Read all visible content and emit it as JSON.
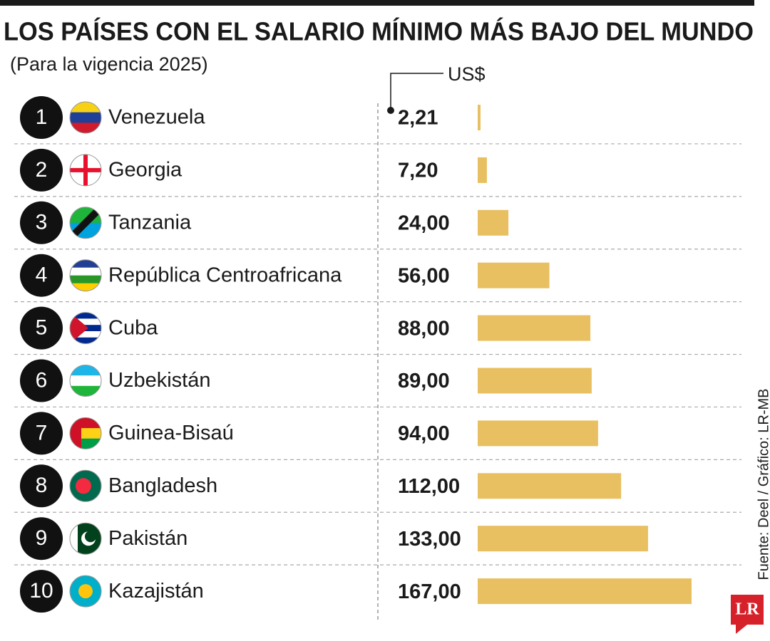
{
  "title": "LOS PAÍSES CON EL SALARIO MÍNIMO MÁS BAJO DEL MUNDO",
  "subtitle": "(Para la vigencia 2025)",
  "source": "Fuente: Deel / Gráfico: LR-MB",
  "logo": "LR",
  "chart_data": {
    "type": "bar",
    "orientation": "horizontal",
    "unit_label": "US$",
    "ranks": [
      1,
      2,
      3,
      4,
      5,
      6,
      7,
      8,
      9,
      10
    ],
    "categories": [
      "Venezuela",
      "Georgia",
      "Tanzania",
      "República Centroafricana",
      "Cuba",
      "Uzbekistán",
      "Guinea-Bisaú",
      "Bangladesh",
      "Pakistán",
      "Kazajistán"
    ],
    "values": [
      2.21,
      7.2,
      24,
      56,
      88,
      89,
      94,
      112,
      133,
      167
    ],
    "value_labels": [
      "2,21",
      "7,20",
      "24,00",
      "56,00",
      "88,00",
      "89,00",
      "94,00",
      "112,00",
      "133,00",
      "167,00"
    ],
    "color": "#e8c062"
  }
}
